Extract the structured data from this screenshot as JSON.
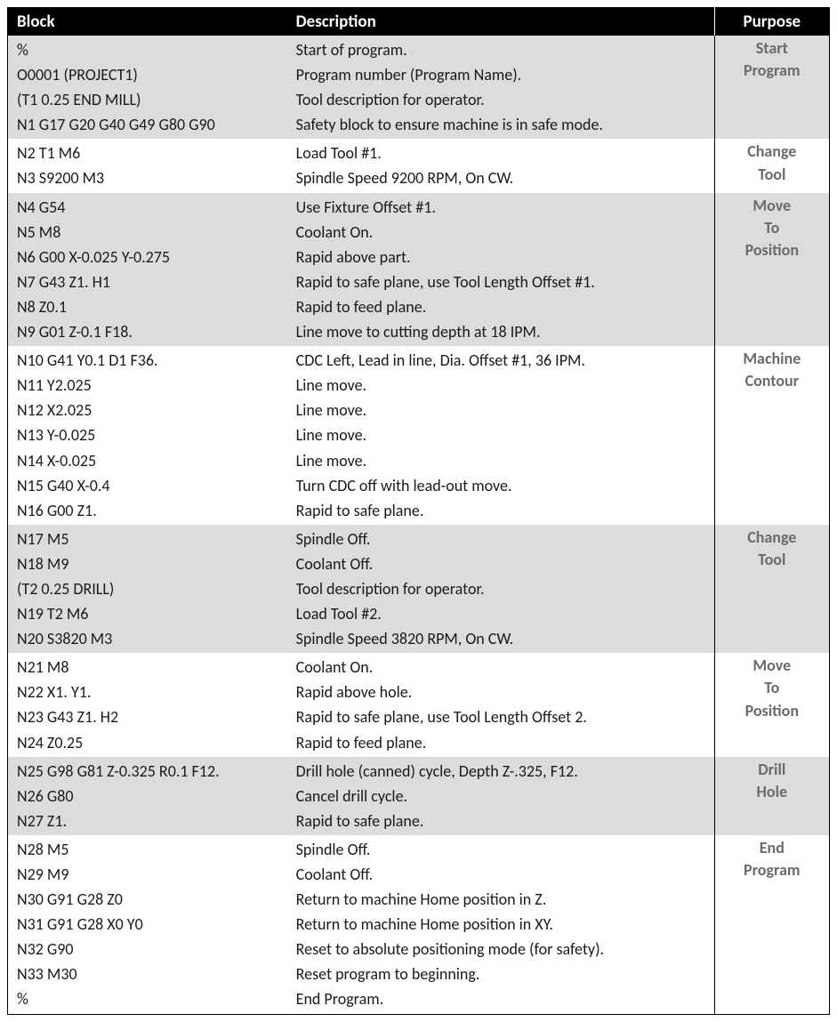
{
  "headers": {
    "block": "Block",
    "description": "Description",
    "purpose": "Purpose"
  },
  "colors": {
    "header_bg": "#000000",
    "header_fg": "#ffffff",
    "shade_bg": "#dcdcdc",
    "white_bg": "#ffffff",
    "text": "#1a1a1a",
    "purpose_fg": "#6b6b6b",
    "border": "#000000"
  },
  "fontsizes": {
    "header": 19,
    "body": 18
  },
  "groups": [
    {
      "purpose": "Start Program",
      "shaded": true,
      "rows": [
        {
          "block": "%",
          "desc": "Start of program."
        },
        {
          "block": "O0001 (PROJECT1)",
          "desc": "Program number (Program Name)."
        },
        {
          "block": "(T1  0.25 END MILL)",
          "desc": "Tool description for operator."
        },
        {
          "block": "N1 G17 G20 G40 G49 G80 G90",
          "desc": "Safety block to ensure machine is in safe mode."
        }
      ]
    },
    {
      "purpose": "Change Tool",
      "shaded": false,
      "rows": [
        {
          "block": "N2 T1 M6",
          "desc": "Load Tool #1."
        },
        {
          "block": "N3 S9200 M3",
          "desc": "Spindle Speed 9200 RPM, On CW."
        }
      ]
    },
    {
      "purpose": "Move To Position",
      "shaded": true,
      "rows": [
        {
          "block": "N4 G54",
          "desc": "Use Fixture Offset #1."
        },
        {
          "block": "N5 M8",
          "desc": "Coolant On."
        },
        {
          "block": "N6 G00 X-0.025 Y-0.275",
          "desc": "Rapid above part."
        },
        {
          "block": "N7 G43 Z1. H1",
          "desc": "Rapid to safe plane, use Tool Length Offset #1."
        },
        {
          "block": "N8 Z0.1",
          "desc": "Rapid to feed plane."
        },
        {
          "block": "N9 G01 Z-0.1 F18.",
          "desc": "Line move to cutting depth at 18 IPM."
        }
      ]
    },
    {
      "purpose": "Machine Contour",
      "shaded": false,
      "rows": [
        {
          "block": "N10 G41 Y0.1 D1 F36.",
          "desc": "CDC Left, Lead in line, Dia. Offset #1, 36 IPM."
        },
        {
          "block": "N11 Y2.025",
          "desc": "Line move."
        },
        {
          "block": "N12 X2.025",
          "desc": "Line move."
        },
        {
          "block": "N13 Y-0.025",
          "desc": "Line move."
        },
        {
          "block": "N14 X-0.025",
          "desc": "Line move."
        },
        {
          "block": "N15 G40 X-0.4",
          "desc": "Turn CDC off with lead-out move."
        },
        {
          "block": "N16 G00 Z1.",
          "desc": "Rapid to safe plane."
        }
      ]
    },
    {
      "purpose": "Change Tool",
      "shaded": true,
      "rows": [
        {
          "block": "N17 M5",
          "desc": "Spindle Off."
        },
        {
          "block": "N18 M9",
          "desc": "Coolant Off."
        },
        {
          "block": "(T2  0.25 DRILL)",
          "desc": "Tool description for operator."
        },
        {
          "block": "N19 T2 M6",
          "desc": "Load Tool #2."
        },
        {
          "block": "N20 S3820 M3",
          "desc": "Spindle Speed 3820 RPM, On CW."
        }
      ]
    },
    {
      "purpose": "Move To Position",
      "shaded": false,
      "rows": [
        {
          "block": "N21 M8",
          "desc": "Coolant On."
        },
        {
          "block": "N22 X1. Y1.",
          "desc": "Rapid above hole."
        },
        {
          "block": "N23 G43 Z1. H2",
          "desc": "Rapid to safe plane, use Tool Length Offset 2."
        },
        {
          "block": "N24 Z0.25",
          "desc": "Rapid to feed plane."
        }
      ]
    },
    {
      "purpose": "Drill Hole",
      "shaded": true,
      "rows": [
        {
          "block": "N25 G98 G81 Z-0.325 R0.1 F12.",
          "desc": "Drill hole (canned) cycle, Depth Z-.325, F12."
        },
        {
          "block": "N26 G80",
          "desc": "Cancel drill cycle."
        },
        {
          "block": "N27 Z1.",
          "desc": "Rapid to safe plane."
        }
      ]
    },
    {
      "purpose": "End Program",
      "shaded": false,
      "rows": [
        {
          "block": "N28 M5",
          "desc": "Spindle Off."
        },
        {
          "block": "N29 M9",
          "desc": "Coolant Off."
        },
        {
          "block": "N30 G91 G28 Z0",
          "desc": "Return to machine Home position in Z."
        },
        {
          "block": "N31 G91 G28 X0 Y0",
          "desc": "Return to machine Home position in XY."
        },
        {
          "block": "N32 G90",
          "desc": "Reset to absolute positioning mode (for safety)."
        },
        {
          "block": "N33 M30",
          "desc": "Reset program to beginning."
        },
        {
          "block": "%",
          "desc": "End Program."
        }
      ]
    }
  ]
}
